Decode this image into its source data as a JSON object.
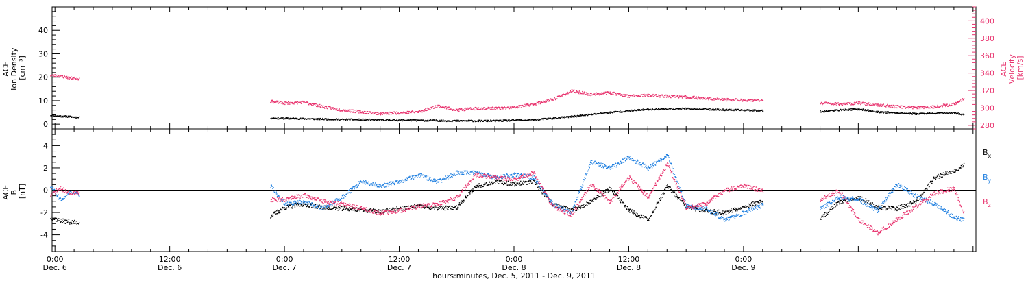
{
  "chart_data": [
    {
      "type": "scatter",
      "panel": "top",
      "ylabel_lines": [
        "ACE",
        "Ion Density",
        "[cm⁻³]"
      ],
      "ylim": [
        -2,
        50
      ],
      "yticks": [
        0,
        10,
        20,
        30,
        40
      ],
      "y2label_lines": [
        "ACE",
        "Velocity",
        "[km/s]"
      ],
      "y2lim": [
        276,
        416
      ],
      "y2ticks": [
        280,
        300,
        320,
        340,
        360,
        380,
        400
      ],
      "xlim": [
        -0.3,
        96.3
      ],
      "colors": {
        "density": "#000000",
        "velocity": "#e8336e"
      },
      "series": [
        {
          "color": "#000000",
          "axis": "left",
          "segments": [
            [
              [
                -0.5,
                4.0
              ],
              [
                0.5,
                3.6
              ],
              [
                1.5,
                3.4
              ],
              [
                2.5,
                3.0
              ]
            ],
            [
              [
                22.5,
                2.8
              ],
              [
                26,
                2.5
              ],
              [
                30,
                2.2
              ],
              [
                34,
                2.0
              ],
              [
                38,
                1.8
              ],
              [
                42,
                1.6
              ],
              [
                46,
                1.6
              ],
              [
                50,
                2.0
              ],
              [
                54,
                3.4
              ],
              [
                58,
                5.2
              ],
              [
                62,
                6.5
              ],
              [
                66,
                6.8
              ],
              [
                70,
                6.3
              ],
              [
                74,
                6.0
              ]
            ],
            [
              [
                80,
                5.5
              ],
              [
                82,
                6.2
              ],
              [
                84,
                6.6
              ],
              [
                86,
                5.4
              ],
              [
                90,
                4.6
              ],
              [
                94,
                5.0
              ],
              [
                95,
                4.2
              ]
            ]
          ]
        },
        {
          "color": "#e8336e",
          "axis": "right",
          "segments": [
            [
              [
                -0.5,
                338
              ],
              [
                0.5,
                337
              ],
              [
                1.5,
                335
              ],
              [
                2.5,
                334
              ]
            ],
            [
              [
                22.5,
                308
              ],
              [
                24,
                306
              ],
              [
                26,
                307
              ],
              [
                28,
                302
              ],
              [
                30,
                298
              ],
              [
                34,
                294
              ],
              [
                38,
                296
              ],
              [
                40,
                303
              ],
              [
                42,
                298
              ],
              [
                44,
                300
              ],
              [
                46,
                300
              ],
              [
                48,
                301
              ],
              [
                50,
                305
              ],
              [
                52,
                310
              ],
              [
                54,
                320
              ],
              [
                56,
                316
              ],
              [
                58,
                318
              ],
              [
                60,
                314
              ],
              [
                62,
                315
              ],
              [
                66,
                313
              ],
              [
                70,
                310
              ],
              [
                74,
                309
              ]
            ],
            [
              [
                80,
                306
              ],
              [
                82,
                305
              ],
              [
                84,
                306
              ],
              [
                86,
                304
              ],
              [
                88,
                302
              ],
              [
                90,
                301
              ],
              [
                92,
                302
              ],
              [
                94,
                305
              ],
              [
                95,
                311
              ]
            ]
          ]
        }
      ]
    },
    {
      "type": "scatter",
      "panel": "bottom",
      "ylabel_lines": [
        "ACE",
        "B",
        "[nT]"
      ],
      "ylim": [
        -5.5,
        5.5
      ],
      "yticks": [
        -4,
        -2,
        0,
        2,
        4
      ],
      "xlim": [
        -0.3,
        96.3
      ],
      "series": [
        {
          "name": "Bx",
          "color": "#000000",
          "segments": [
            [
              [
                -0.5,
                -2.4
              ],
              [
                0.5,
                -2.7
              ],
              [
                1.5,
                -2.8
              ],
              [
                2.5,
                -2.9
              ]
            ],
            [
              [
                22.5,
                -2.3
              ],
              [
                24,
                -1.5
              ],
              [
                26,
                -1.2
              ],
              [
                28,
                -1.5
              ],
              [
                30,
                -1.6
              ],
              [
                32,
                -1.7
              ],
              [
                34,
                -1.9
              ],
              [
                36,
                -1.6
              ],
              [
                38,
                -1.4
              ],
              [
                40,
                -1.6
              ],
              [
                42,
                -1.5
              ],
              [
                44,
                0.4
              ],
              [
                46,
                0.8
              ],
              [
                48,
                0.6
              ],
              [
                50,
                0.8
              ],
              [
                52,
                -1.2
              ],
              [
                54,
                -1.8
              ],
              [
                56,
                -1.0
              ],
              [
                58,
                0.2
              ],
              [
                60,
                -1.8
              ],
              [
                62,
                -2.6
              ],
              [
                64,
                0.4
              ],
              [
                66,
                -1.5
              ],
              [
                68,
                -1.8
              ],
              [
                70,
                -2.0
              ],
              [
                72,
                -1.4
              ],
              [
                74,
                -1.0
              ]
            ],
            [
              [
                80,
                -2.5
              ],
              [
                82,
                -1.0
              ],
              [
                84,
                -0.6
              ],
              [
                86,
                -1.5
              ],
              [
                88,
                -1.6
              ],
              [
                90,
                -1.0
              ],
              [
                92,
                1.2
              ],
              [
                94,
                1.8
              ],
              [
                95,
                2.3
              ]
            ]
          ]
        },
        {
          "name": "By",
          "color": "#1f7fe0",
          "segments": [
            [
              [
                -0.5,
                0.4
              ],
              [
                0.5,
                -0.8
              ],
              [
                1.5,
                -0.2
              ],
              [
                2.5,
                -0.3
              ]
            ],
            [
              [
                22.5,
                0.4
              ],
              [
                24,
                -1.2
              ],
              [
                26,
                -1.0
              ],
              [
                28,
                -1.6
              ],
              [
                30,
                -0.6
              ],
              [
                32,
                0.8
              ],
              [
                34,
                0.4
              ],
              [
                36,
                0.8
              ],
              [
                38,
                1.4
              ],
              [
                40,
                0.8
              ],
              [
                42,
                1.6
              ],
              [
                44,
                1.6
              ],
              [
                46,
                1.2
              ],
              [
                48,
                1.4
              ],
              [
                50,
                1.2
              ],
              [
                52,
                -1.2
              ],
              [
                54,
                -2.0
              ],
              [
                56,
                2.6
              ],
              [
                58,
                2.0
              ],
              [
                60,
                3.0
              ],
              [
                62,
                2.0
              ],
              [
                64,
                3.2
              ],
              [
                66,
                -1.4
              ],
              [
                68,
                -1.6
              ],
              [
                70,
                -2.6
              ],
              [
                72,
                -2.0
              ],
              [
                74,
                -1.3
              ]
            ],
            [
              [
                80,
                -1.6
              ],
              [
                82,
                -0.6
              ],
              [
                84,
                -0.8
              ],
              [
                86,
                -1.8
              ],
              [
                88,
                0.6
              ],
              [
                90,
                -0.5
              ],
              [
                92,
                -1.2
              ],
              [
                94,
                -2.4
              ],
              [
                95,
                -2.6
              ]
            ]
          ]
        },
        {
          "name": "Bz",
          "color": "#e8336e",
          "segments": [
            [
              [
                -0.5,
                -0.4
              ],
              [
                0.5,
                0.2
              ],
              [
                1.5,
                -0.2
              ],
              [
                2.5,
                -0.2
              ]
            ],
            [
              [
                22.5,
                -0.8
              ],
              [
                24,
                -0.8
              ],
              [
                26,
                -0.4
              ],
              [
                28,
                -1.0
              ],
              [
                30,
                -1.2
              ],
              [
                32,
                -1.6
              ],
              [
                34,
                -2.0
              ],
              [
                36,
                -1.8
              ],
              [
                38,
                -1.4
              ],
              [
                40,
                -1.2
              ],
              [
                42,
                -0.6
              ],
              [
                44,
                1.4
              ],
              [
                46,
                1.2
              ],
              [
                48,
                1.0
              ],
              [
                50,
                1.6
              ],
              [
                52,
                -1.4
              ],
              [
                54,
                -2.2
              ],
              [
                56,
                0.6
              ],
              [
                58,
                -1.0
              ],
              [
                60,
                1.2
              ],
              [
                62,
                -0.6
              ],
              [
                64,
                2.4
              ],
              [
                66,
                -1.6
              ],
              [
                68,
                -1.2
              ],
              [
                70,
                0.0
              ],
              [
                72,
                0.4
              ],
              [
                74,
                0.0
              ]
            ],
            [
              [
                80,
                -0.8
              ],
              [
                82,
                0.0
              ],
              [
                84,
                -2.6
              ],
              [
                86,
                -3.8
              ],
              [
                88,
                -2.6
              ],
              [
                90,
                -1.4
              ],
              [
                92,
                -0.2
              ],
              [
                94,
                0.2
              ],
              [
                95,
                -2.0
              ]
            ]
          ]
        }
      ],
      "legend": {
        "position": "right",
        "items": [
          {
            "base": "B",
            "sub": "x",
            "color": "#000000"
          },
          {
            "base": "B",
            "sub": "y",
            "color": "#1f7fe0"
          },
          {
            "base": "B",
            "sub": "z",
            "color": "#e8336e"
          }
        ]
      }
    }
  ],
  "x_axis": {
    "label": "hours:minutes, Dec. 5, 2011 - Dec. 9, 2011",
    "ticks": [
      {
        "x": 0,
        "time": "0:00",
        "date": "Dec. 6"
      },
      {
        "x": 12,
        "time": "12:00",
        "date": "Dec. 6"
      },
      {
        "x": 24,
        "time": "0:00",
        "date": "Dec. 7"
      },
      {
        "x": 36,
        "time": "12:00",
        "date": "Dec. 7"
      },
      {
        "x": 48,
        "time": "0:00",
        "date": "Dec. 8"
      },
      {
        "x": 60,
        "time": "12:00",
        "date": "Dec. 8"
      },
      {
        "x": 72,
        "time": "0:00",
        "date": "Dec. 9"
      }
    ]
  }
}
